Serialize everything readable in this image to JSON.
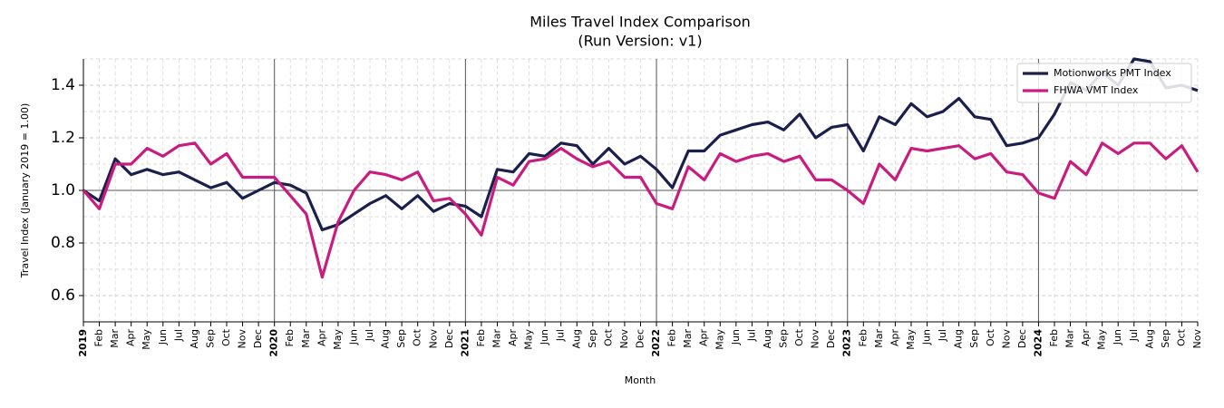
{
  "chart_data": {
    "type": "line",
    "title": "Miles Travel Index Comparison",
    "subtitle": "(Run Version: v1)",
    "x_label": "Month",
    "y_label": "Travel Index (January 2019 = 1.00)",
    "categories": [
      "2019",
      "Feb",
      "Mar",
      "Apr",
      "May",
      "Jun",
      "Jul",
      "Aug",
      "Sep",
      "Oct",
      "Nov",
      "Dec",
      "2020",
      "Feb",
      "Mar",
      "Apr",
      "May",
      "Jun",
      "Jul",
      "Aug",
      "Sep",
      "Oct",
      "Nov",
      "Dec",
      "2021",
      "Feb",
      "Mar",
      "Apr",
      "May",
      "Jun",
      "Jul",
      "Aug",
      "Sep",
      "Oct",
      "Nov",
      "Dec",
      "2022",
      "Feb",
      "Mar",
      "Apr",
      "May",
      "Jun",
      "Jul",
      "Aug",
      "Sep",
      "Oct",
      "Nov",
      "Dec",
      "2023",
      "Feb",
      "Mar",
      "Apr",
      "May",
      "Jun",
      "Jul",
      "Aug",
      "Sep",
      "Oct",
      "Nov",
      "Dec",
      "2024",
      "Feb",
      "Mar",
      "Apr",
      "May",
      "Jun",
      "Jul",
      "Aug",
      "Sep",
      "Oct",
      "Nov"
    ],
    "series": [
      {
        "name": "Motionworks PMT Index",
        "color": "#1b1f4b",
        "values": [
          1.0,
          0.96,
          1.12,
          1.06,
          1.08,
          1.06,
          1.07,
          1.04,
          1.01,
          1.03,
          0.97,
          1.0,
          1.03,
          1.02,
          0.99,
          0.85,
          0.87,
          0.91,
          0.95,
          0.98,
          0.93,
          0.98,
          0.92,
          0.95,
          0.94,
          0.9,
          1.08,
          1.07,
          1.14,
          1.13,
          1.18,
          1.17,
          1.1,
          1.16,
          1.1,
          1.13,
          1.08,
          1.01,
          1.15,
          1.15,
          1.21,
          1.23,
          1.25,
          1.26,
          1.23,
          1.29,
          1.2,
          1.24,
          1.25,
          1.15,
          1.28,
          1.25,
          1.33,
          1.28,
          1.3,
          1.35,
          1.28,
          1.27,
          1.17,
          1.18,
          1.2,
          1.29,
          1.41,
          1.38,
          1.45,
          1.4,
          1.5,
          1.49,
          1.39,
          1.4,
          1.38
        ]
      },
      {
        "name": "FHWA VMT Index",
        "color": "#c81d7f",
        "values": [
          1.0,
          0.93,
          1.1,
          1.1,
          1.16,
          1.13,
          1.17,
          1.18,
          1.1,
          1.14,
          1.05,
          1.05,
          1.05,
          0.98,
          0.91,
          0.67,
          0.88,
          1.0,
          1.07,
          1.06,
          1.04,
          1.07,
          0.96,
          0.97,
          0.91,
          0.83,
          1.05,
          1.02,
          1.11,
          1.12,
          1.16,
          1.12,
          1.09,
          1.11,
          1.05,
          1.05,
          0.95,
          0.93,
          1.09,
          1.04,
          1.14,
          1.11,
          1.13,
          1.14,
          1.11,
          1.13,
          1.04,
          1.04,
          1.0,
          0.95,
          1.1,
          1.04,
          1.16,
          1.15,
          1.16,
          1.17,
          1.12,
          1.14,
          1.07,
          1.06,
          0.99,
          0.97,
          1.11,
          1.06,
          1.18,
          1.14,
          1.18,
          1.18,
          1.12,
          1.17,
          1.07
        ]
      }
    ],
    "ylim": [
      0.5,
      1.5
    ],
    "yticks": [
      0.6,
      0.8,
      {
        "value": 1,
        "label": "1.0"
      },
      1.2,
      1.4
    ],
    "grid": true,
    "legend": "upper right"
  }
}
